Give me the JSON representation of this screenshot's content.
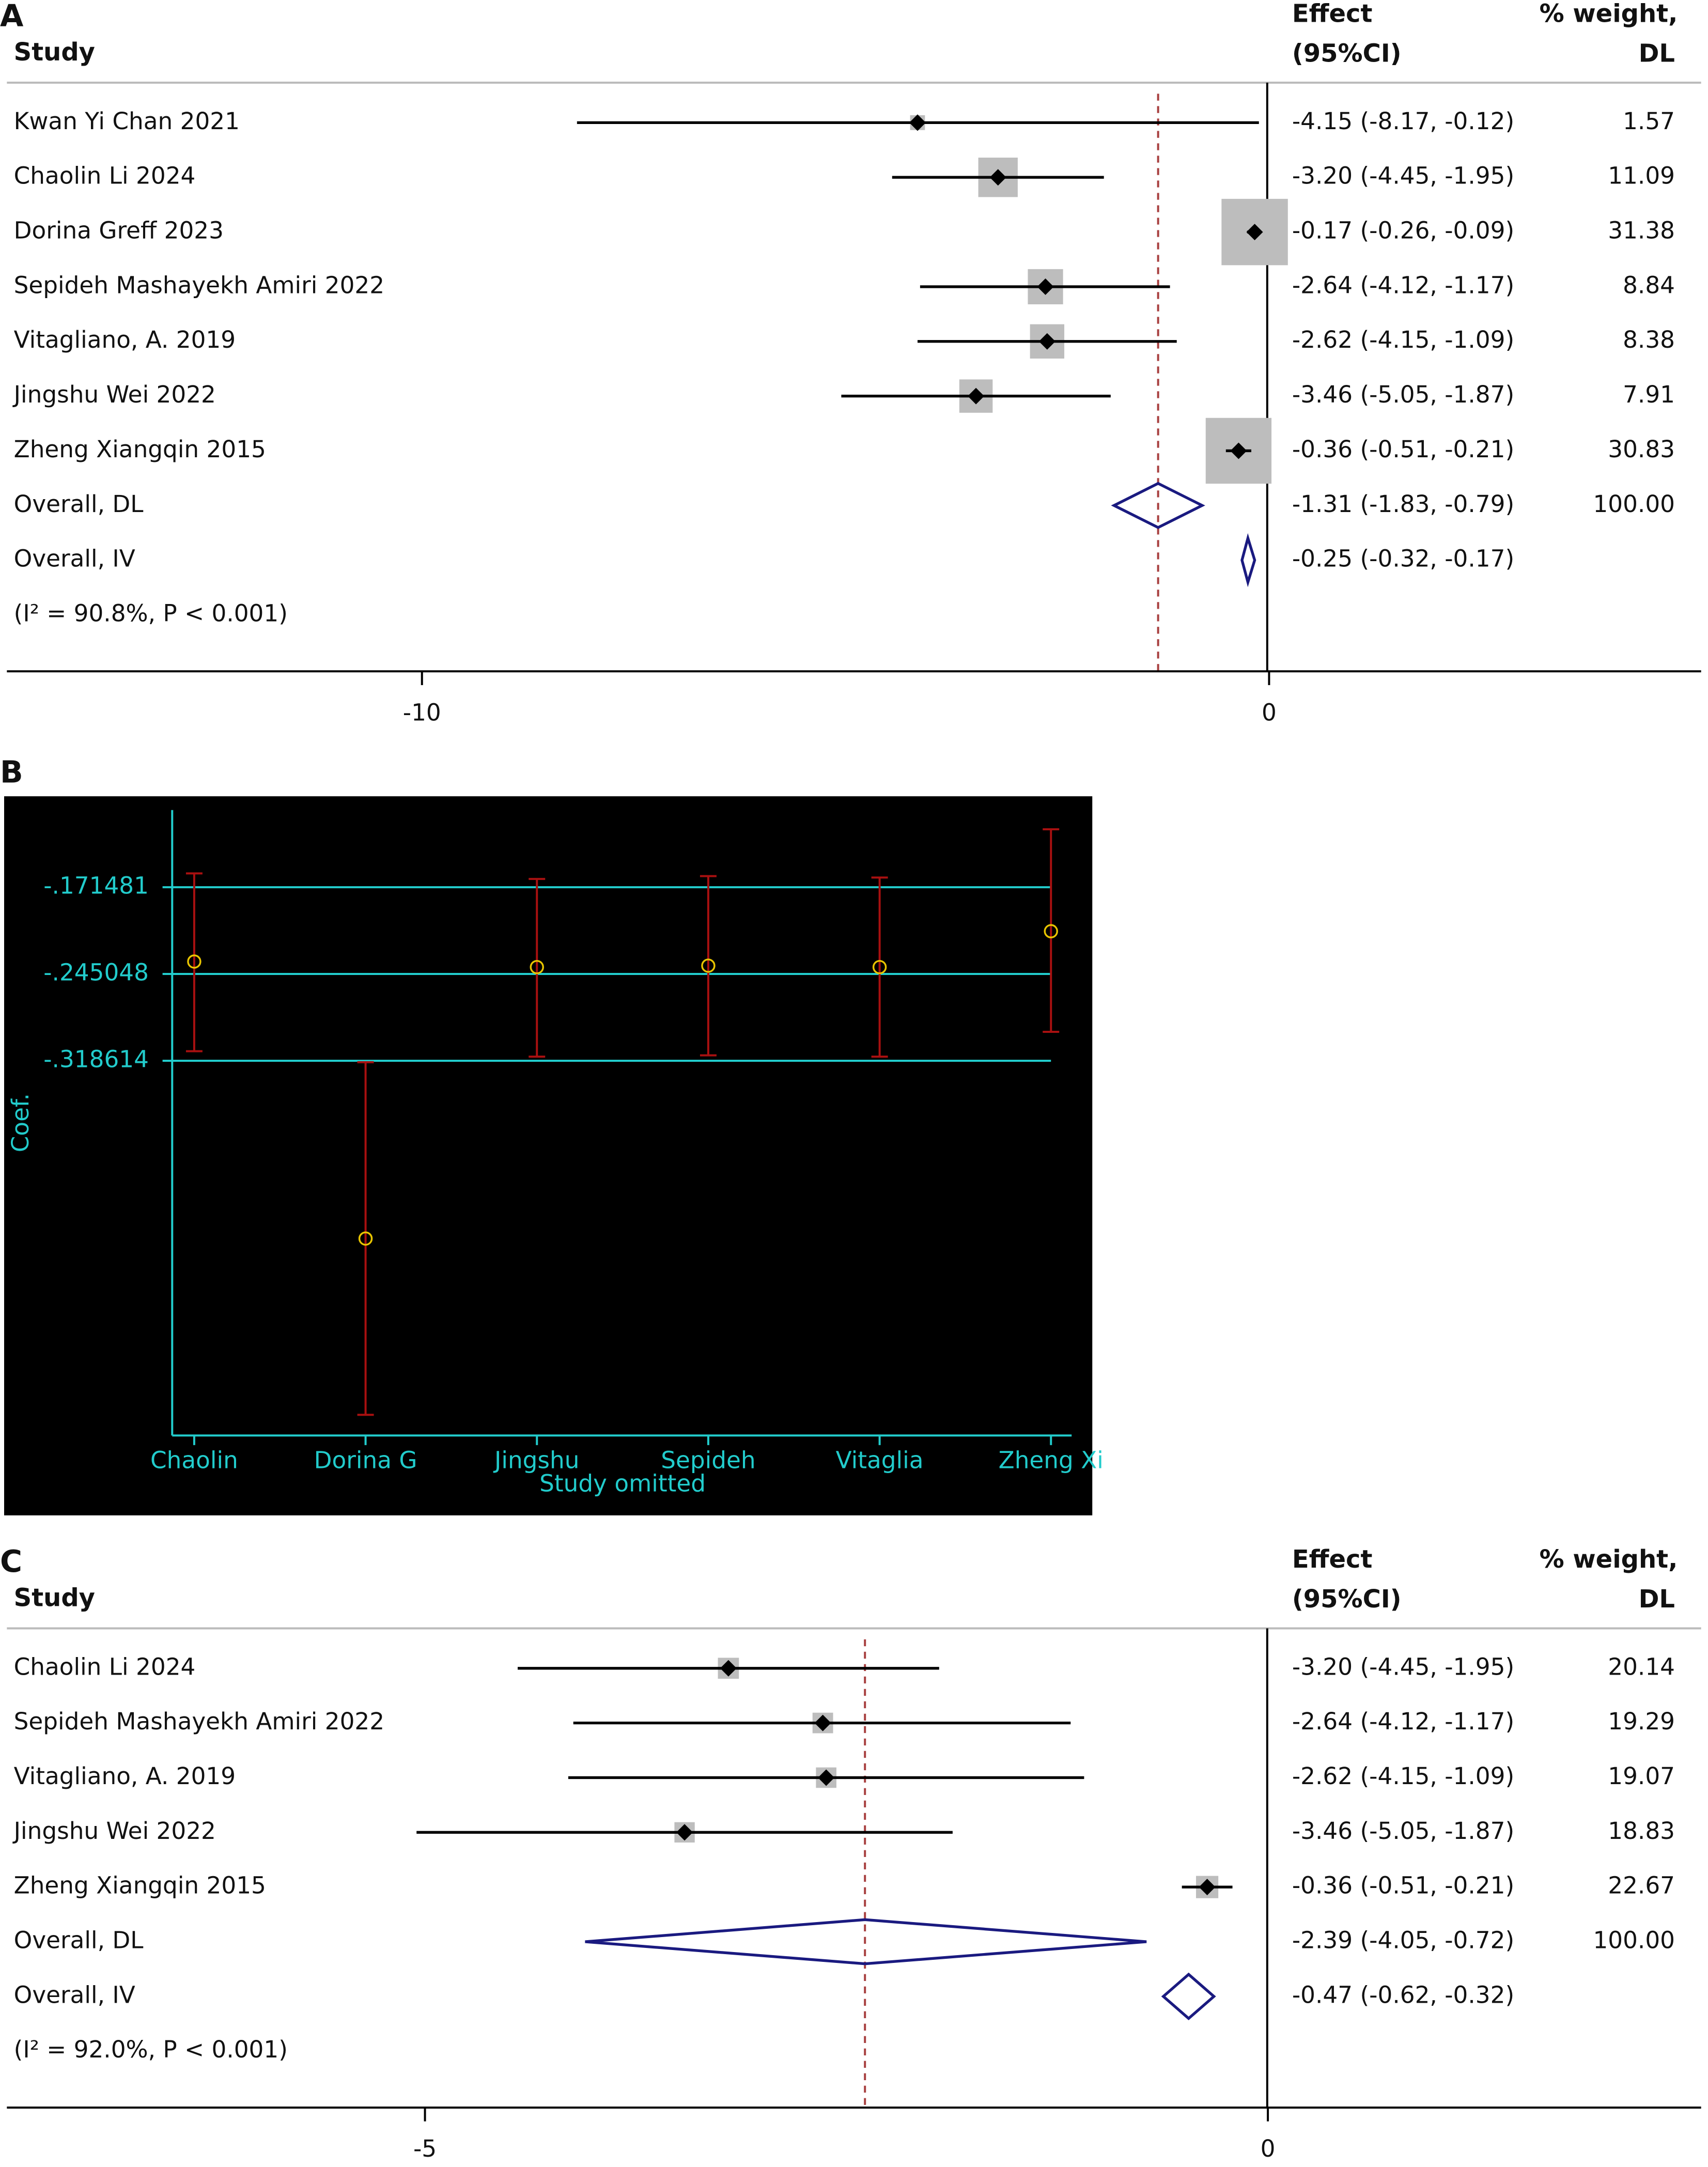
{
  "chart_data": [
    {
      "type": "forest",
      "panel": "A",
      "headers": {
        "study": "Study",
        "effect": "Effect",
        "ci": "(95%CI)",
        "weight": "% weight,",
        "method": "DL"
      },
      "studies": [
        {
          "name": "Kwan Yi Chan 2021",
          "effect": -4.15,
          "lower": -8.17,
          "upper": -0.12,
          "weight": 1.57,
          "label": "-4.15 (-8.17, -0.12)"
        },
        {
          "name": "Chaolin Li 2024",
          "effect": -3.2,
          "lower": -4.45,
          "upper": -1.95,
          "weight": 11.09,
          "label": "-3.20 (-4.45, -1.95)"
        },
        {
          "name": "Dorina Greff 2023",
          "effect": -0.17,
          "lower": -0.26,
          "upper": -0.09,
          "weight": 31.38,
          "label": "-0.17 (-0.26, -0.09)"
        },
        {
          "name": "Sepideh Mashayekh Amiri 2022",
          "effect": -2.64,
          "lower": -4.12,
          "upper": -1.17,
          "weight": 8.84,
          "label": "-2.64 (-4.12, -1.17)"
        },
        {
          "name": "Vitagliano, A. 2019",
          "effect": -2.62,
          "lower": -4.15,
          "upper": -1.09,
          "weight": 8.38,
          "label": "-2.62 (-4.15, -1.09)"
        },
        {
          "name": "Jingshu Wei 2022",
          "effect": -3.46,
          "lower": -5.05,
          "upper": -1.87,
          "weight": 7.91,
          "label": "-3.46 (-5.05, -1.87)"
        },
        {
          "name": "Zheng Xiangqin 2015",
          "effect": -0.36,
          "lower": -0.51,
          "upper": -0.21,
          "weight": 30.83,
          "label": "-0.36 (-0.51, -0.21)"
        }
      ],
      "overall": [
        {
          "name": "Overall, DL",
          "effect": -1.31,
          "lower": -1.83,
          "upper": -0.79,
          "weight": 100,
          "weight_label": "100.00",
          "label": "-1.31 (-1.83, -0.79)"
        },
        {
          "name": "Overall, IV",
          "effect": -0.25,
          "lower": -0.32,
          "upper": -0.17,
          "label": "-0.25 (-0.32, -0.17)"
        }
      ],
      "note": "(I² = 90.8%, P < 0.001)",
      "xlim": [
        -14.9,
        5.1
      ],
      "xticks": [
        -10,
        0
      ]
    },
    {
      "type": "errorbar",
      "panel": "B",
      "categories": [
        "Chaolin",
        "Dorina G",
        "Jingshu",
        "Sepideh",
        "Vitaglia",
        "Zheng Xi"
      ],
      "values": [
        -0.2345,
        -0.4693,
        -0.2392,
        -0.238,
        -0.2392,
        -0.2088
      ],
      "lower": [
        -0.3105,
        -0.6187,
        -0.3151,
        -0.314,
        -0.3151,
        -0.2941
      ],
      "upper": [
        -0.1598,
        -0.3198,
        -0.1645,
        -0.1621,
        -0.1633,
        -0.1224
      ],
      "ylim": [
        -0.6362,
        -0.1061
      ],
      "yticks": [
        {
          "value": -0.171481,
          "label": "-.171481"
        },
        {
          "value": -0.245048,
          "label": "-.245048"
        },
        {
          "value": -0.318614,
          "label": "-.318614"
        }
      ],
      "ylabel": "Coef.",
      "xlabel": "Study omitted",
      "grid": true,
      "background": "#000000",
      "axis_color": "#22cccc",
      "bar_color": "#a81010",
      "marker_color": "#e8c400"
    },
    {
      "type": "forest",
      "panel": "C",
      "headers": {
        "study": "Study",
        "effect": "Effect",
        "ci": "(95%CI)",
        "weight": "% weight,",
        "method": "DL"
      },
      "studies": [
        {
          "name": "Chaolin Li 2024",
          "effect": -3.2,
          "lower": -4.45,
          "upper": -1.95,
          "weight": 20.14,
          "label": "-3.20 (-4.45, -1.95)"
        },
        {
          "name": "Sepideh Mashayekh Amiri 2022",
          "effect": -2.64,
          "lower": -4.12,
          "upper": -1.17,
          "weight": 19.29,
          "label": "-2.64 (-4.12, -1.17)"
        },
        {
          "name": "Vitagliano, A. 2019",
          "effect": -2.62,
          "lower": -4.15,
          "upper": -1.09,
          "weight": 19.07,
          "label": "-2.62 (-4.15, -1.09)"
        },
        {
          "name": "Jingshu Wei 2022",
          "effect": -3.46,
          "lower": -5.05,
          "upper": -1.87,
          "weight": 18.83,
          "label": "-3.46 (-5.05, -1.87)"
        },
        {
          "name": "Zheng Xiangqin 2015",
          "effect": -0.36,
          "lower": -0.51,
          "upper": -0.21,
          "weight": 22.67,
          "label": "-0.36 (-0.51, -0.21)"
        }
      ],
      "overall": [
        {
          "name": "Overall, DL",
          "effect": -2.39,
          "lower": -4.05,
          "upper": -0.72,
          "weight": 100,
          "weight_label": "100.00",
          "label": "-2.39 (-4.05, -0.72)"
        },
        {
          "name": "Overall, IV",
          "effect": -0.47,
          "lower": -0.62,
          "upper": -0.32,
          "label": "-0.47 (-0.62, -0.32)"
        }
      ],
      "note": "(I² = 92.0%, P < 0.001)",
      "xlim": [
        -7.48,
        2.57
      ],
      "xticks": [
        -5,
        0
      ]
    }
  ]
}
